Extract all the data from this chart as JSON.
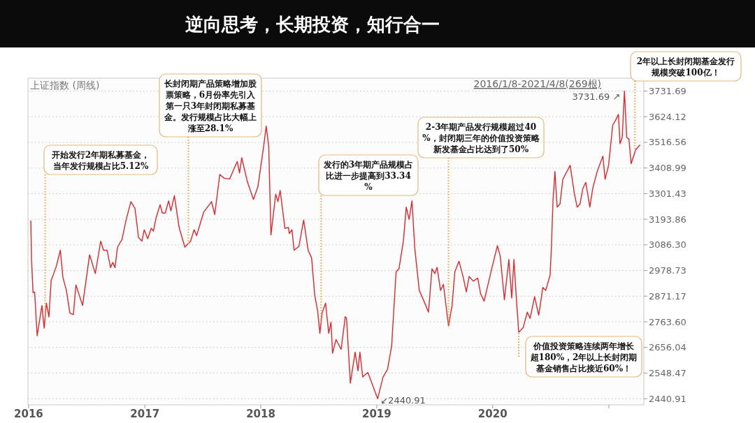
{
  "chart_data": {
    "type": "line",
    "title": "逆向思考，长期投资，知行合一",
    "subtitle": "上证指数 (周线)",
    "xlim": [
      "2015-12-30",
      "2021-04-21"
    ],
    "xticks": [
      {
        "value": "2016-01-01",
        "label": "2016"
      },
      {
        "value": "2017-01-01",
        "label": "2017"
      },
      {
        "value": "2018-01-01",
        "label": "2018"
      },
      {
        "value": "2019-01-01",
        "label": "2019"
      },
      {
        "value": "2020-01-01",
        "label": "2020"
      },
      {
        "value": "2021-01-01",
        "label": null
      }
    ],
    "ylim": [
      2415,
      3786
    ],
    "yticks": [
      2440.91,
      2548.47,
      2656.04,
      {
        "value": 2763.6,
        "label": "2763.60"
      },
      2871.17,
      2978.73,
      {
        "value": 3086.3,
        "label": "3086.30"
      },
      3193.86,
      3301.43,
      3408.99,
      3516.56,
      3624.12,
      3731.69
    ],
    "grid": "y",
    "series": [
      {
        "color": "#e3262b",
        "x": [
          "2016-01-08",
          "2016-01-10",
          "2016-01-15",
          "2016-01-20",
          "2016-01-28",
          "2016-02-12",
          "2016-02-19",
          "2016-02-26",
          "2016-03-05",
          "2016-03-12",
          "2016-03-27",
          "2016-04-10",
          "2016-04-18",
          "2016-04-29",
          "2016-05-10",
          "2016-05-21",
          "2016-05-29",
          "2016-06-19",
          "2016-07-11",
          "2016-07-29",
          "2016-08-15",
          "2016-08-24",
          "2016-09-04",
          "2016-09-15",
          "2016-09-22",
          "2016-09-29",
          "2016-10-07",
          "2016-10-21",
          "2016-11-03",
          "2016-11-18",
          "2016-12-01",
          "2016-12-12",
          "2016-12-23",
          "2016-12-30",
          "2017-01-10",
          "2017-01-21",
          "2017-01-28",
          "2017-02-05",
          "2017-02-18",
          "2017-02-25",
          "2017-03-06",
          "2017-03-17",
          "2017-03-24",
          "2017-04-04",
          "2017-04-19",
          "2017-05-07",
          "2017-05-25",
          "2017-06-05",
          "2017-06-13",
          "2017-07-05",
          "2017-07-30",
          "2017-08-09",
          "2017-08-25",
          "2017-09-08",
          "2017-09-25",
          "2017-10-08",
          "2017-10-19",
          "2017-10-26",
          "2017-11-02",
          "2017-11-20",
          "2017-12-09",
          "2017-12-23",
          "2018-01-11",
          "2018-01-18",
          "2018-01-26",
          "2018-02-02",
          "2018-02-17",
          "2018-02-24",
          "2018-03-03",
          "2018-03-18",
          "2018-03-29",
          "2018-04-01",
          "2018-04-09",
          "2018-04-16",
          "2018-05-01",
          "2018-05-16",
          "2018-05-30",
          "2018-06-10",
          "2018-06-20",
          "2018-06-29",
          "2018-07-06",
          "2018-07-13",
          "2018-07-24",
          "2018-08-03",
          "2018-08-10",
          "2018-08-15",
          "2018-08-26",
          "2018-09-11",
          "2018-09-24",
          "2018-09-28",
          "2018-10-10",
          "2018-10-25",
          "2018-11-03",
          "2018-11-09",
          "2018-11-18",
          "2018-12-04",
          "2019-01-04",
          "2019-01-21",
          "2019-02-04",
          "2019-02-17",
          "2019-03-03",
          "2019-03-12",
          "2019-03-26",
          "2019-04-04",
          "2019-04-13",
          "2019-04-22",
          "2019-05-01",
          "2019-05-15",
          "2019-06-01",
          "2019-06-13",
          "2019-06-24",
          "2019-07-03",
          "2019-07-10",
          "2019-07-21",
          "2019-07-30",
          "2019-08-15",
          "2019-08-26",
          "2019-09-04",
          "2019-09-17",
          "2019-10-01",
          "2019-10-10",
          "2019-10-19",
          "2019-11-01",
          "2019-11-15",
          "2019-11-24",
          "2019-12-05",
          "2019-12-29",
          "2020-01-16",
          "2020-01-25",
          "2020-02-07",
          "2020-02-21",
          "2020-03-01",
          "2020-03-08",
          "2020-03-14",
          "2020-03-23",
          "2020-04-06",
          "2020-04-19",
          "2020-04-28",
          "2020-05-12",
          "2020-05-25",
          "2020-06-07",
          "2020-06-16",
          "2020-06-30",
          "2020-07-04",
          "2020-07-09",
          "2020-07-15",
          "2020-07-22",
          "2020-07-31",
          "2020-08-09",
          "2020-09-01",
          "2020-09-14",
          "2020-09-23",
          "2020-10-02",
          "2020-10-11",
          "2020-10-20",
          "2020-11-02",
          "2020-11-11",
          "2020-11-25",
          "2020-12-13",
          "2020-12-20",
          "2020-12-31",
          "2021-01-13",
          "2021-01-22",
          "2021-01-31",
          "2021-02-05",
          "2021-02-12",
          "2021-02-19",
          "2021-02-26",
          "2021-03-05",
          "2021-03-12",
          "2021-03-26",
          "2021-04-08"
        ],
        "values": [
          3187,
          3033,
          2886,
          2889,
          2705,
          2832,
          2737,
          2842,
          2784,
          2937,
          2991,
          3064,
          2950,
          2896,
          2800,
          2794,
          2918,
          2832,
          3045,
          2966,
          3102,
          3064,
          3064,
          2991,
          3013,
          2991,
          3077,
          3109,
          3191,
          3268,
          3239,
          3118,
          3102,
          3150,
          3112,
          3156,
          3144,
          3198,
          3255,
          3220,
          3220,
          3271,
          3229,
          3293,
          3159,
          3077,
          3102,
          3150,
          3125,
          3223,
          3268,
          3214,
          3382,
          3366,
          3363,
          3404,
          3436,
          3388,
          3452,
          3350,
          3277,
          3331,
          3509,
          3585,
          3500,
          3128,
          3299,
          3268,
          3315,
          3156,
          3159,
          3134,
          3150,
          3064,
          3080,
          3191,
          3064,
          3032,
          2873,
          2810,
          2715,
          2800,
          2842,
          2715,
          2762,
          2632,
          2689,
          2648,
          2785,
          2778,
          2506,
          2636,
          2558,
          2636,
          2532,
          2551,
          2440.91,
          2532,
          2564,
          2662,
          2973,
          2986,
          3103,
          3245,
          3193,
          3271,
          3070,
          2895,
          2843,
          2804,
          2986,
          2966,
          2992,
          2895,
          2921,
          2746,
          2830,
          2973,
          3018,
          2947,
          2889,
          2954,
          2934,
          2947,
          2882,
          2850,
          2986,
          3083,
          3038,
          2856,
          3025,
          2863,
          3025,
          2895,
          2720,
          2739,
          2804,
          2778,
          2869,
          2791,
          2908,
          2895,
          2960,
          3077,
          3271,
          3394,
          3245,
          3258,
          3362,
          3420,
          3304,
          3245,
          3258,
          3323,
          3349,
          3245,
          3323,
          3394,
          3459,
          3362,
          3420,
          3589,
          3609,
          3634,
          3511,
          3537,
          3731.69,
          3537,
          3531,
          3427,
          3485,
          3505
        ]
      }
    ],
    "annotations": [
      "2016/1/8-2021/4/8(269根)",
      {
        "text": "开始发行2年期私募基金，当年发行规模占比5.12%",
        "x": "2016-02-22",
        "y": 2780
      },
      {
        "text": "长封闭期产品策略增加股票策略，6月份率先引入第一只3年封闭期私募基金。发行规模占比大幅上涨至28.1%",
        "x": "2017-05-18",
        "y": 3090
      },
      {
        "text": "发行的3年期产品规模占比进一步提高到33.34%",
        "x": "2018-07-10",
        "y": 2760
      },
      {
        "text": "2-3年期产品发行规模超过40%，封闭期三年的价值投资策略新发基金占比达到了50%",
        "x": "2019-08-15",
        "y": 2746
      },
      {
        "text": "价值投资策略连续两年增长超180%，2年以上长封闭期基金销售占比接近60%！",
        "x": "2020-03-23",
        "y": 2720
      },
      {
        "text": "2年以上长封闭期基金发行规模突破100亿！",
        "x": "2021-03-24",
        "y": 3478
      },
      {
        "text": "3731.69 ↗",
        "x": "2021-02-19",
        "y": 3731.69
      },
      {
        "text": "↙2440.91",
        "x": "2019-01-04",
        "y": 2440.91
      }
    ]
  }
}
